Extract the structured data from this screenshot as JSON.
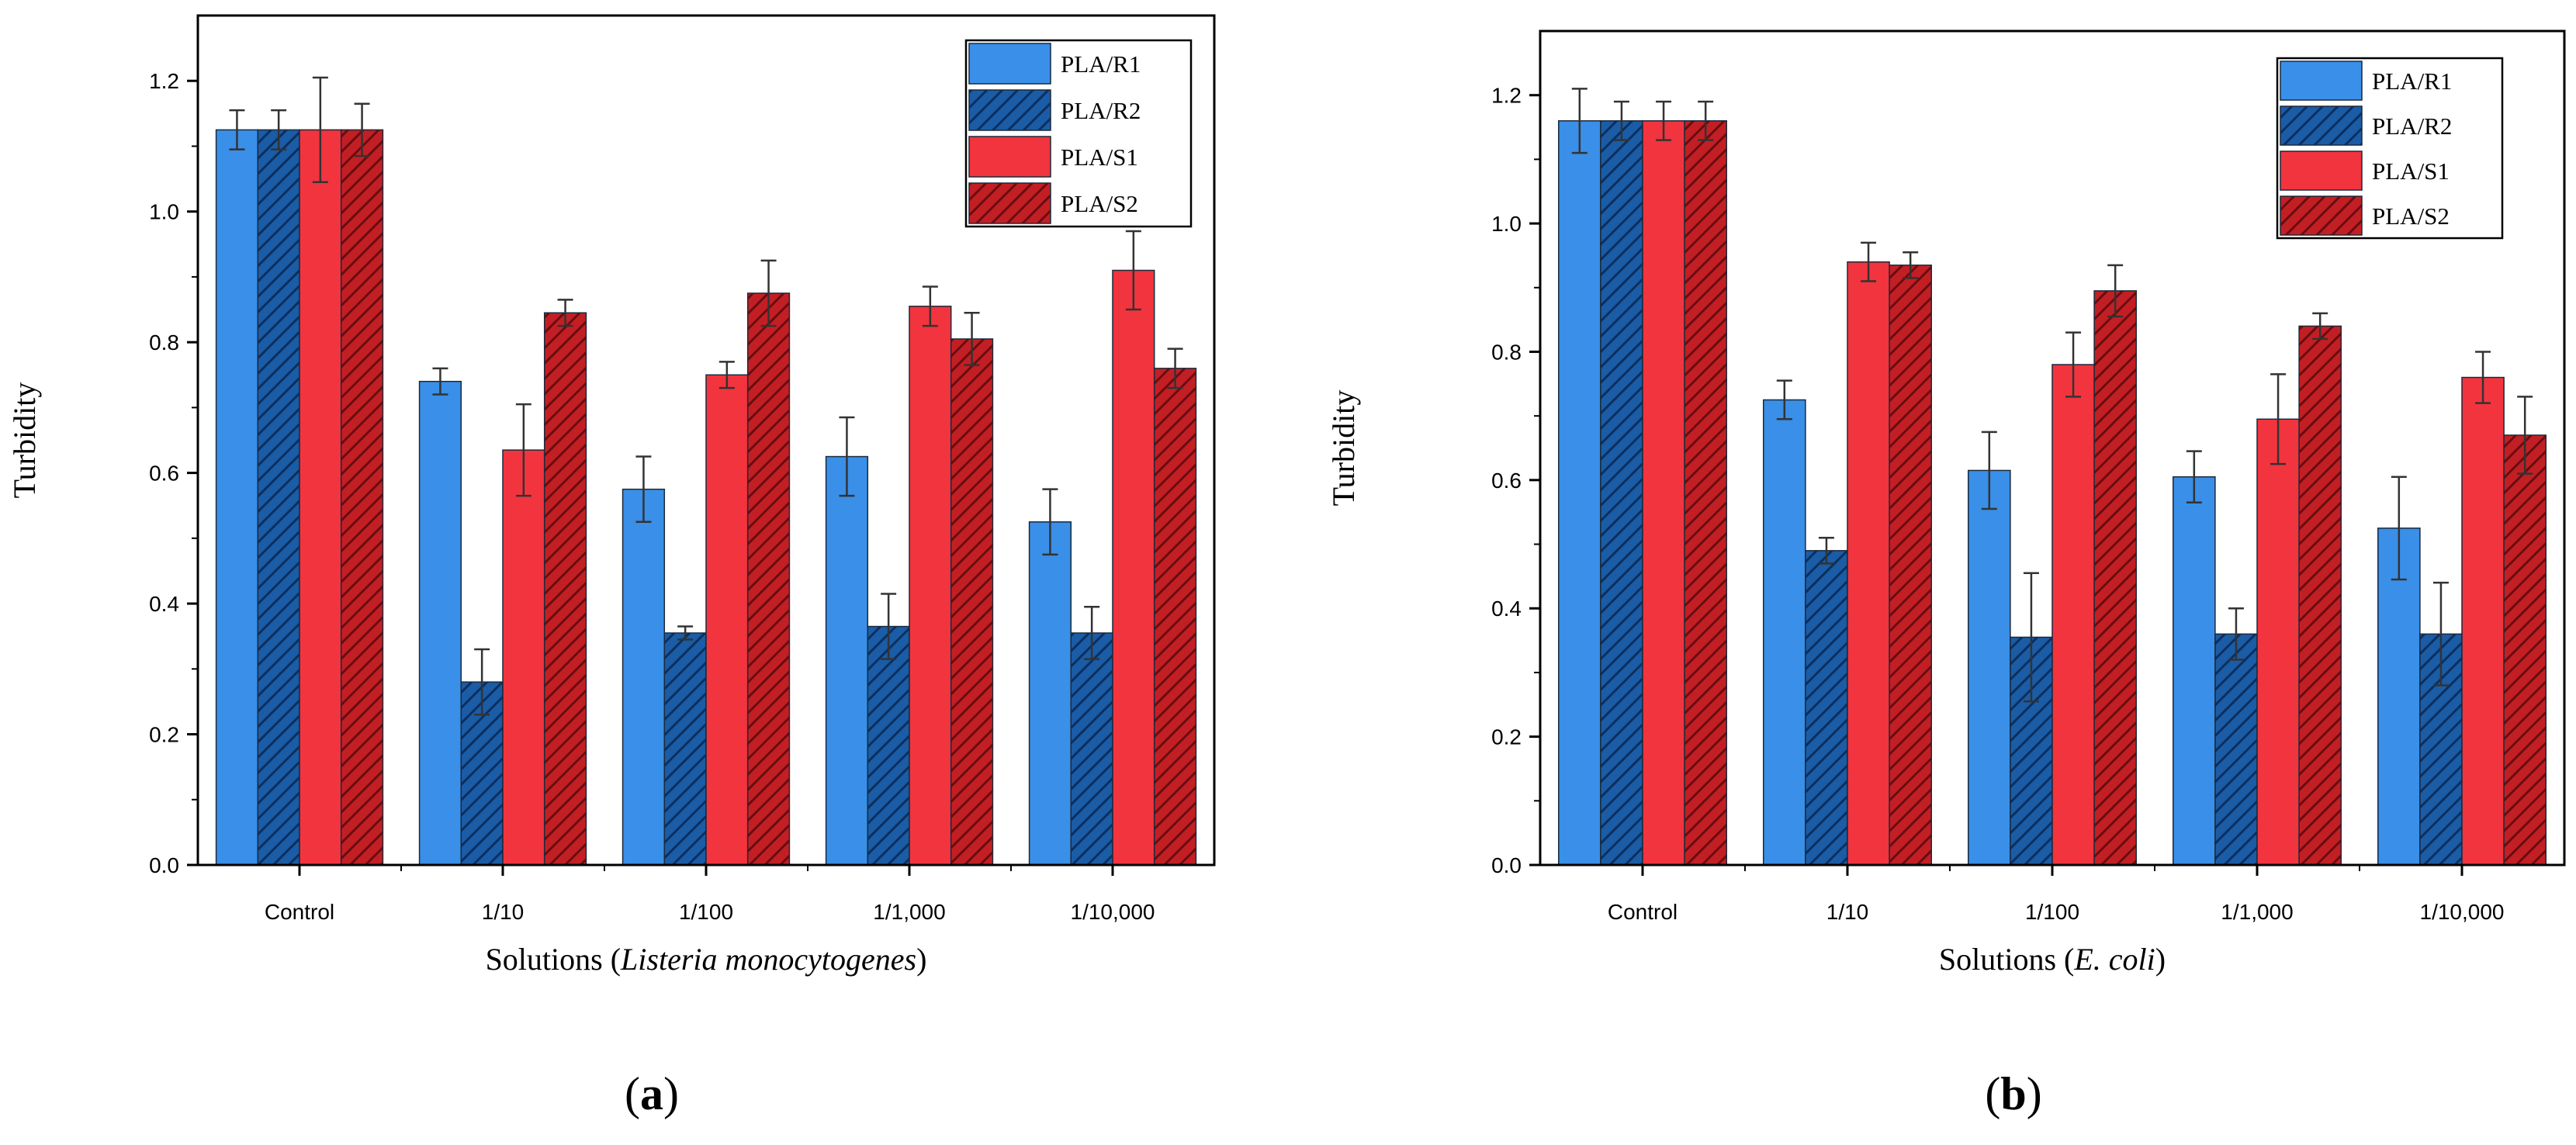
{
  "colors": {
    "PLA/R1": "#3a8fe8",
    "PLA/R2": "#1a5ca6",
    "PLA/S1": "#f2343f",
    "PLA/S2": "#c21f25",
    "axis": "#000000",
    "error": "#333333"
  },
  "chart_data": [
    {
      "type": "bar",
      "panel_label": {
        "open": "(",
        "letter": "a",
        "close": ")"
      },
      "title": "",
      "categories": [
        "Control",
        "1/10",
        "1/100",
        "1/1,000",
        "1/10,000"
      ],
      "xlabel": {
        "prefix": "Solutions (",
        "organism": "Listeria monocytogenes",
        "suffix": ")"
      },
      "ylabel": "Turbidity",
      "ylim": [
        0,
        1.3
      ],
      "yticks": [
        "0.0",
        "0.2",
        "0.4",
        "0.6",
        "0.8",
        "1.0",
        "1.2"
      ],
      "legend_position": "top-right",
      "series": [
        {
          "name": "PLA/R1",
          "hatched": false,
          "values": [
            1.125,
            0.74,
            0.575,
            0.625,
            0.525
          ],
          "errors": [
            0.03,
            0.02,
            0.05,
            0.06,
            0.05
          ]
        },
        {
          "name": "PLA/R2",
          "hatched": true,
          "values": [
            1.125,
            0.28,
            0.355,
            0.365,
            0.355
          ],
          "errors": [
            0.03,
            0.05,
            0.01,
            0.05,
            0.04
          ]
        },
        {
          "name": "PLA/S1",
          "hatched": false,
          "values": [
            1.125,
            0.635,
            0.75,
            0.855,
            0.91
          ],
          "errors": [
            0.08,
            0.07,
            0.02,
            0.03,
            0.06
          ]
        },
        {
          "name": "PLA/S2",
          "hatched": true,
          "values": [
            1.125,
            0.845,
            0.875,
            0.805,
            0.76
          ],
          "errors": [
            0.04,
            0.02,
            0.05,
            0.04,
            0.03
          ]
        }
      ]
    },
    {
      "type": "bar",
      "panel_label": {
        "open": "(",
        "letter": "b",
        "close": ")"
      },
      "title": "",
      "categories": [
        "Control",
        "1/10",
        "1/100",
        "1/1,000",
        "1/10,000"
      ],
      "xlabel": {
        "prefix": "Solutions (",
        "organism": "E. coli",
        "suffix": ")"
      },
      "ylabel": "Turbidity",
      "ylim": [
        0,
        1.3
      ],
      "yticks": [
        "0.0",
        "0.2",
        "0.4",
        "0.6",
        "0.8",
        "1.0",
        "1.2"
      ],
      "legend_position": "top-right",
      "series": [
        {
          "name": "PLA/R1",
          "hatched": false,
          "values": [
            1.16,
            0.725,
            0.615,
            0.605,
            0.525
          ],
          "errors": [
            0.05,
            0.03,
            0.06,
            0.04,
            0.08
          ]
        },
        {
          "name": "PLA/R2",
          "hatched": true,
          "values": [
            1.16,
            0.49,
            0.355,
            0.36,
            0.36
          ],
          "errors": [
            0.03,
            0.02,
            0.1,
            0.04,
            0.08
          ]
        },
        {
          "name": "PLA/S1",
          "hatched": false,
          "values": [
            1.16,
            0.94,
            0.78,
            0.695,
            0.76
          ],
          "errors": [
            0.03,
            0.03,
            0.05,
            0.07,
            0.04
          ]
        },
        {
          "name": "PLA/S2",
          "hatched": true,
          "values": [
            1.16,
            0.935,
            0.895,
            0.84,
            0.67
          ],
          "errors": [
            0.03,
            0.02,
            0.04,
            0.02,
            0.06
          ]
        }
      ]
    }
  ]
}
